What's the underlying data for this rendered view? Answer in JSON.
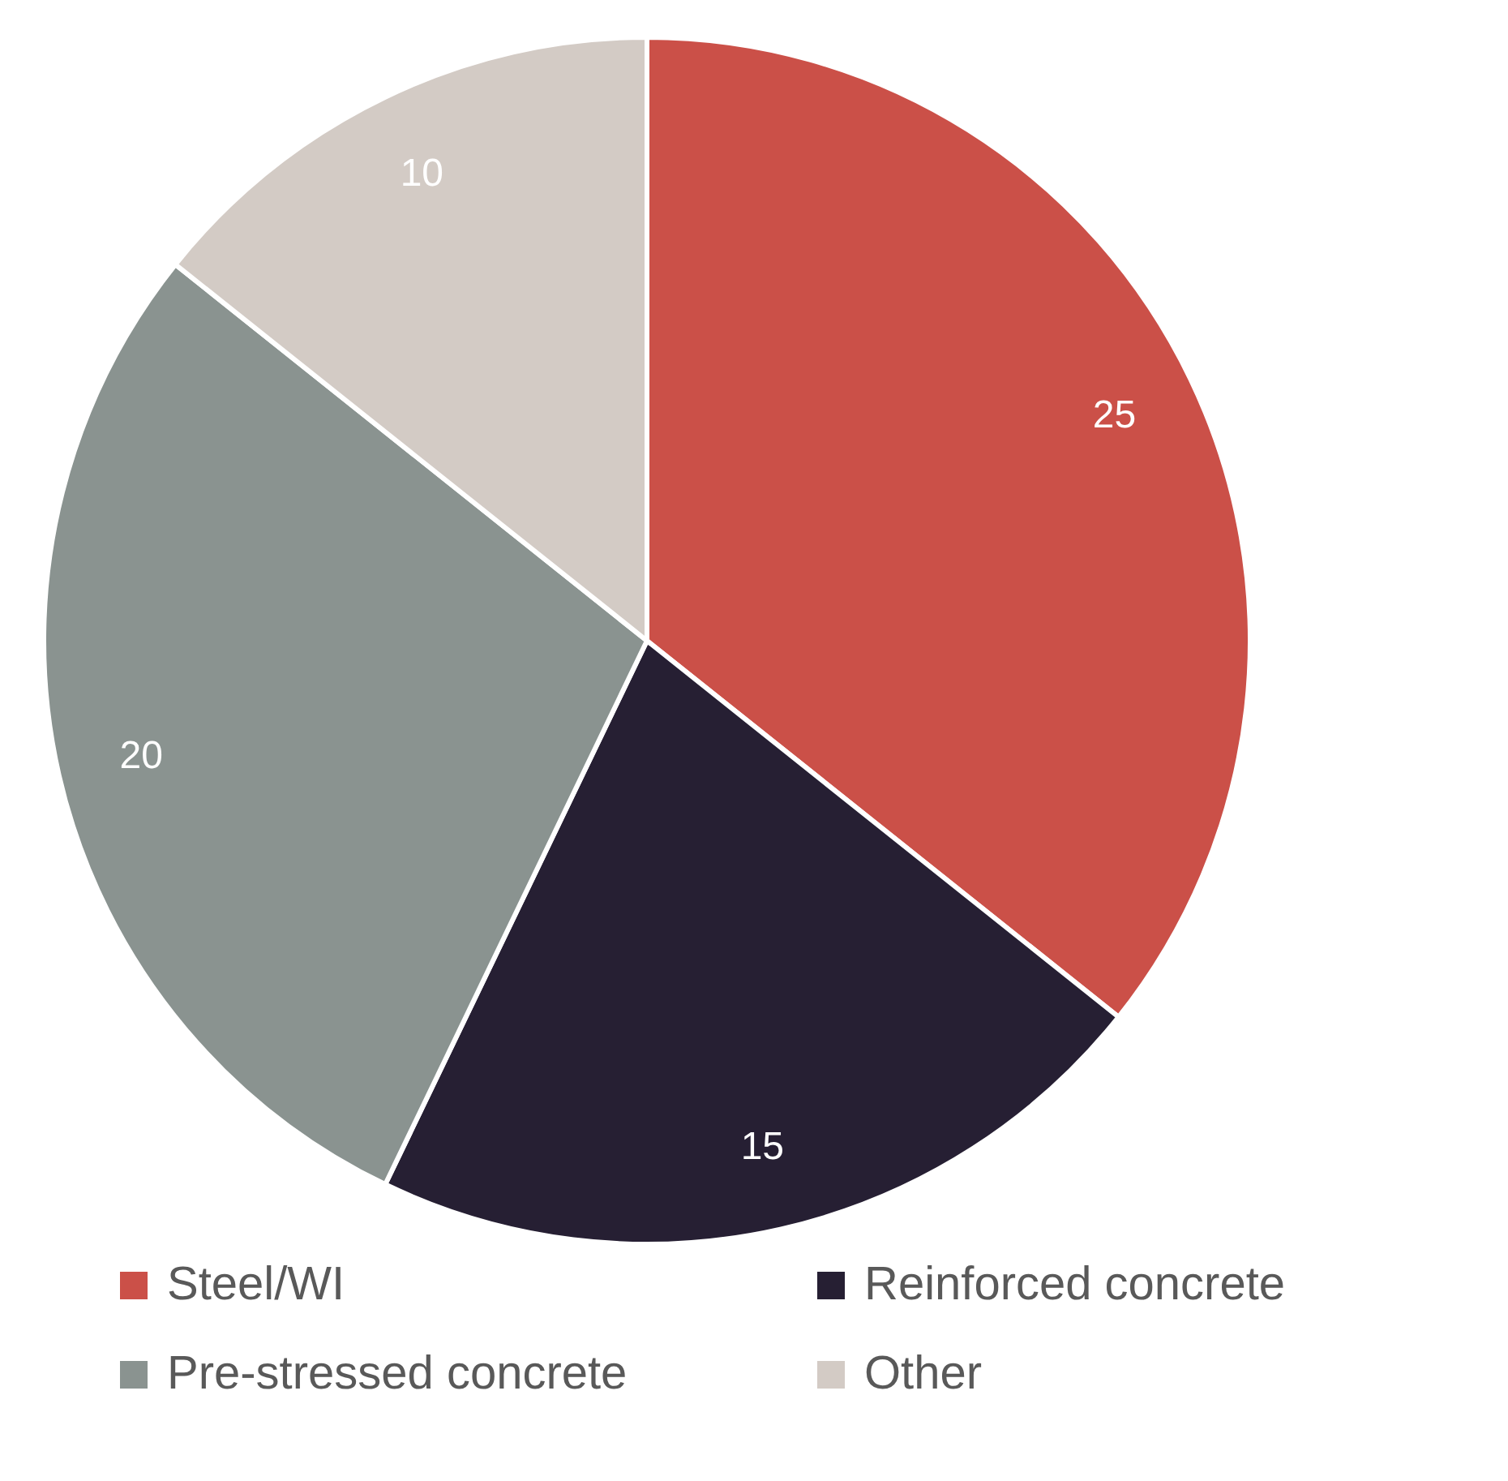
{
  "chart_data": {
    "type": "pie",
    "categories": [
      "Steel/WI",
      "Reinforced concrete",
      "Pre-stressed concrete",
      "Other"
    ],
    "values": [
      25,
      15,
      20,
      10
    ],
    "colors": [
      "#cb5048",
      "#261f33",
      "#8a9390",
      "#d3cbc5"
    ],
    "data_labels": true,
    "legend": "bottom"
  }
}
